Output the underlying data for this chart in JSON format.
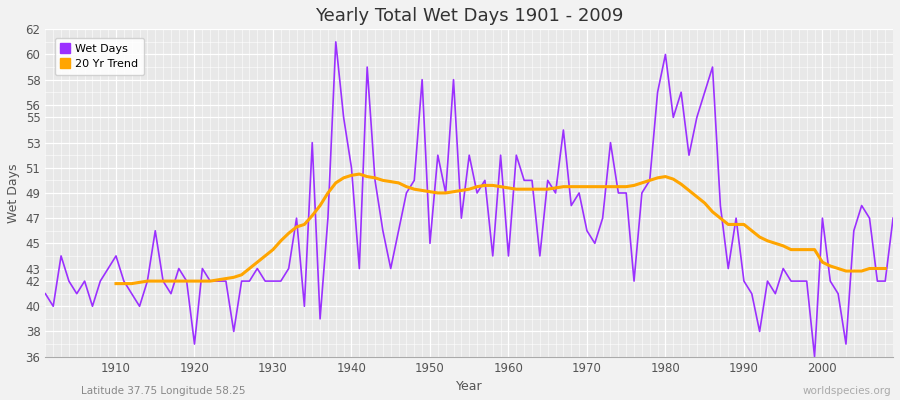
{
  "title": "Yearly Total Wet Days 1901 - 2009",
  "xlabel": "Year",
  "ylabel": "Wet Days",
  "subtitle": "Latitude 37.75 Longitude 58.25",
  "watermark": "worldspecies.org",
  "ylim": [
    36,
    62
  ],
  "yticks": [
    36,
    38,
    40,
    42,
    43,
    45,
    47,
    49,
    51,
    53,
    55,
    56,
    58,
    60,
    62
  ],
  "xlim": [
    1901,
    2009
  ],
  "wet_days_color": "#9B30FF",
  "trend_color": "#FFA500",
  "background_color": "#f2f2f2",
  "plot_bg_color": "#e8e8e8",
  "legend_labels": [
    "Wet Days",
    "20 Yr Trend"
  ],
  "years": [
    1901,
    1902,
    1903,
    1904,
    1905,
    1906,
    1907,
    1908,
    1909,
    1910,
    1911,
    1912,
    1913,
    1914,
    1915,
    1916,
    1917,
    1918,
    1919,
    1920,
    1921,
    1922,
    1923,
    1924,
    1925,
    1926,
    1927,
    1928,
    1929,
    1930,
    1931,
    1932,
    1933,
    1934,
    1935,
    1936,
    1937,
    1938,
    1939,
    1940,
    1941,
    1942,
    1943,
    1944,
    1945,
    1946,
    1947,
    1948,
    1949,
    1950,
    1951,
    1952,
    1953,
    1954,
    1955,
    1956,
    1957,
    1958,
    1959,
    1960,
    1961,
    1962,
    1963,
    1964,
    1965,
    1966,
    1967,
    1968,
    1969,
    1970,
    1971,
    1972,
    1973,
    1974,
    1975,
    1976,
    1977,
    1978,
    1979,
    1980,
    1981,
    1982,
    1983,
    1984,
    1985,
    1986,
    1987,
    1988,
    1989,
    1990,
    1991,
    1992,
    1993,
    1994,
    1995,
    1996,
    1997,
    1998,
    1999,
    2000,
    2001,
    2002,
    2003,
    2004,
    2005,
    2006,
    2007,
    2008,
    2009
  ],
  "wet_days": [
    41,
    40,
    44,
    42,
    41,
    42,
    40,
    42,
    43,
    44,
    42,
    41,
    40,
    42,
    46,
    42,
    41,
    43,
    42,
    37,
    43,
    42,
    42,
    42,
    38,
    42,
    42,
    43,
    42,
    42,
    42,
    43,
    47,
    40,
    53,
    39,
    47,
    61,
    55,
    51,
    43,
    59,
    50,
    46,
    43,
    46,
    49,
    50,
    58,
    45,
    52,
    49,
    58,
    47,
    52,
    49,
    50,
    44,
    52,
    44,
    52,
    50,
    50,
    44,
    50,
    49,
    54,
    48,
    49,
    46,
    45,
    47,
    53,
    49,
    49,
    42,
    49,
    50,
    57,
    60,
    55,
    57,
    52,
    55,
    57,
    59,
    48,
    43,
    47,
    42,
    41,
    38,
    42,
    41,
    43,
    42,
    42,
    42,
    36,
    47,
    42,
    41,
    37,
    46,
    48,
    47,
    42,
    42,
    47
  ],
  "trend_start_year": 1910,
  "trend_values": [
    41.8,
    41.8,
    41.8,
    41.9,
    42.0,
    42.0,
    42.0,
    42.0,
    42.0,
    42.0,
    42.0,
    42.0,
    42.0,
    42.1,
    42.2,
    42.3,
    42.5,
    43.0,
    43.5,
    44.0,
    44.5,
    45.2,
    45.8,
    46.3,
    46.5,
    47.2,
    48.0,
    49.0,
    49.8,
    50.2,
    50.4,
    50.5,
    50.3,
    50.2,
    50.0,
    49.9,
    49.8,
    49.5,
    49.3,
    49.2,
    49.1,
    49.0,
    49.0,
    49.1,
    49.2,
    49.3,
    49.5,
    49.6,
    49.6,
    49.5,
    49.4,
    49.3,
    49.3,
    49.3,
    49.3,
    49.3,
    49.4,
    49.5,
    49.5,
    49.5,
    49.5,
    49.5,
    49.5,
    49.5,
    49.5,
    49.5,
    49.6,
    49.8,
    50.0,
    50.2,
    50.3,
    50.1,
    49.7,
    49.2,
    48.7,
    48.2,
    47.5,
    47.0,
    46.5,
    46.5,
    46.5,
    46.0,
    45.5,
    45.2,
    45.0,
    44.8,
    44.5,
    44.5,
    44.5,
    44.5,
    43.5,
    43.2,
    43.0,
    42.8,
    42.8,
    42.8,
    43.0,
    43.0,
    43.0
  ]
}
